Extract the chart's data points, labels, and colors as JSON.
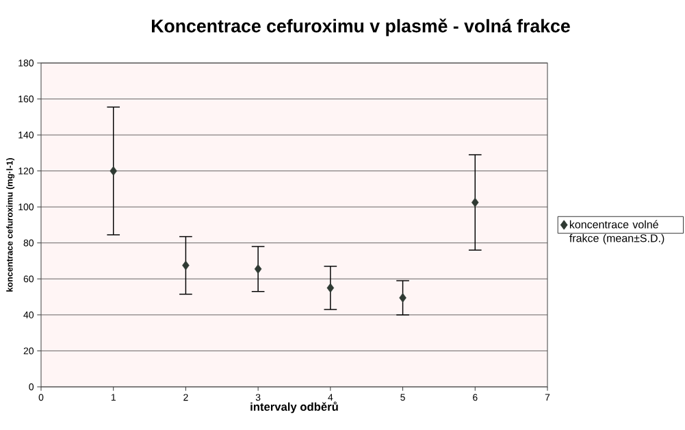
{
  "chart_data": {
    "type": "scatter",
    "title": "Koncentrace cefuroximu v plasmě - volná frakce",
    "xlabel": "intervaly odběrů",
    "ylabel": "koncentrace cefuroximu (mg·l-1)",
    "x": [
      1,
      2,
      3,
      4,
      5,
      6
    ],
    "series": [
      {
        "name": "koncentrace volné frakce (mean±S.D.)",
        "color": "#2f3a33",
        "values": [
          120,
          67.5,
          65.5,
          55,
          49.5,
          102.5
        ],
        "errors": [
          35.5,
          16,
          12.5,
          12,
          9.5,
          26.5
        ]
      }
    ],
    "xlim": [
      0,
      7
    ],
    "xticks": [
      0,
      1,
      2,
      3,
      4,
      5,
      6,
      7
    ],
    "ylim": [
      0,
      180
    ],
    "yticks": [
      0,
      20,
      40,
      60,
      80,
      100,
      120,
      140,
      160,
      180
    ],
    "grid": "y",
    "legend": "right",
    "marker": "diamond"
  }
}
